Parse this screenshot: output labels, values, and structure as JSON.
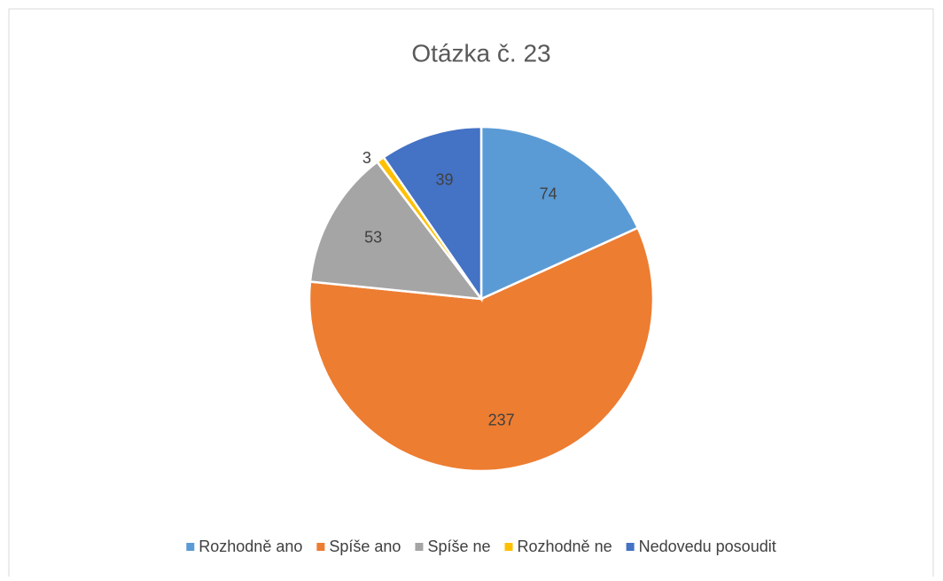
{
  "chart_data": {
    "type": "pie",
    "title": "Otázka č. 23",
    "categories": [
      "Rozhodně ano",
      "Spíše ano",
      "Spíše ne",
      "Rozhodně ne",
      "Nedovedu posoudit"
    ],
    "values": [
      74,
      237,
      53,
      3,
      39
    ],
    "colors": [
      "#5b9bd5",
      "#ed7d31",
      "#a5a5a5",
      "#ffc000",
      "#4472c4"
    ],
    "legend": "bottom"
  }
}
